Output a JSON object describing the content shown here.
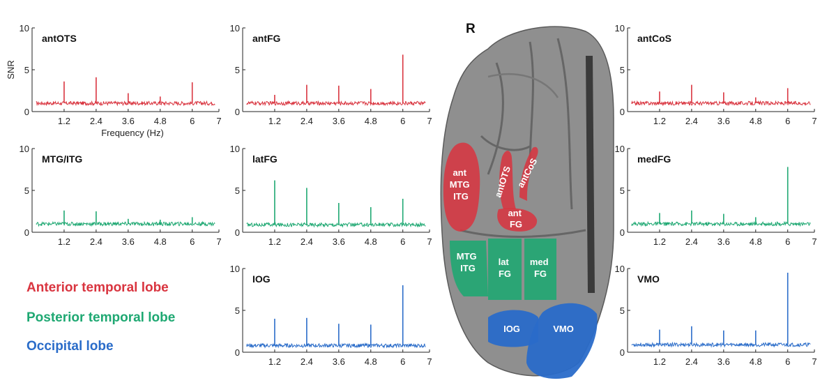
{
  "colors": {
    "anterior": "#d9343f",
    "posterior": "#1ea872",
    "occipital": "#2a6cc9",
    "axis": "#222222",
    "brain": "#8e8e8e"
  },
  "legend": {
    "anterior": "Anterior temporal lobe",
    "posterior": "Posterior temporal lobe",
    "occipital": "Occipital lobe"
  },
  "brain": {
    "hemisphere_label": "R",
    "regions": [
      {
        "label": "ant MTG ITG",
        "lobe": "anterior"
      },
      {
        "label": "antOTS",
        "lobe": "anterior"
      },
      {
        "label": "antCoS",
        "lobe": "anterior"
      },
      {
        "label": "ant FG",
        "lobe": "anterior"
      },
      {
        "label": "MTG ITG",
        "lobe": "posterior"
      },
      {
        "label": "lat FG",
        "lobe": "posterior"
      },
      {
        "label": "med FG",
        "lobe": "posterior"
      },
      {
        "label": "IOG",
        "lobe": "occipital"
      },
      {
        "label": "VMO",
        "lobe": "occipital"
      }
    ]
  },
  "chart_data": [
    {
      "type": "line",
      "title": "antOTS",
      "lobe": "anterior",
      "ylabel": "SNR",
      "xlabel": "Frequency (Hz)",
      "xlim": [
        0,
        7
      ],
      "ylim": [
        0,
        10
      ],
      "yticks": [
        0,
        5,
        10
      ],
      "xticks": [
        "1.2",
        "2.4",
        "3.6",
        "4.8",
        "6",
        "7"
      ],
      "baseline": 1.0,
      "peaks": [
        {
          "x": 1.2,
          "y": 3.6
        },
        {
          "x": 2.4,
          "y": 4.1
        },
        {
          "x": 3.6,
          "y": 2.2
        },
        {
          "x": 4.8,
          "y": 1.8
        },
        {
          "x": 6.0,
          "y": 3.5
        }
      ]
    },
    {
      "type": "line",
      "title": "antFG",
      "lobe": "anterior",
      "ylabel": "",
      "xlabel": "",
      "xlim": [
        0,
        7
      ],
      "ylim": [
        0,
        10
      ],
      "yticks": [
        0,
        5,
        10
      ],
      "xticks": [
        "1.2",
        "2.4",
        "3.6",
        "4.8",
        "6",
        "7"
      ],
      "baseline": 1.0,
      "peaks": [
        {
          "x": 1.2,
          "y": 2.0
        },
        {
          "x": 2.4,
          "y": 3.2
        },
        {
          "x": 3.6,
          "y": 3.1
        },
        {
          "x": 4.8,
          "y": 2.7
        },
        {
          "x": 6.0,
          "y": 6.8
        }
      ]
    },
    {
      "type": "line",
      "title": "antCoS",
      "lobe": "anterior",
      "ylabel": "",
      "xlabel": "",
      "xlim": [
        0,
        7
      ],
      "ylim": [
        0,
        10
      ],
      "yticks": [
        0,
        5,
        10
      ],
      "xticks": [
        "1.2",
        "2.4",
        "3.6",
        "4.8",
        "6",
        "7"
      ],
      "baseline": 1.0,
      "peaks": [
        {
          "x": 1.2,
          "y": 2.4
        },
        {
          "x": 2.4,
          "y": 3.2
        },
        {
          "x": 3.6,
          "y": 2.3
        },
        {
          "x": 4.8,
          "y": 1.7
        },
        {
          "x": 6.0,
          "y": 2.8
        }
      ]
    },
    {
      "type": "line",
      "title": "MTG/ITG",
      "lobe": "posterior",
      "ylabel": "",
      "xlabel": "",
      "xlim": [
        0,
        7
      ],
      "ylim": [
        0,
        10
      ],
      "yticks": [
        0,
        5,
        10
      ],
      "xticks": [
        "1.2",
        "2.4",
        "3.6",
        "4.8",
        "6",
        "7"
      ],
      "baseline": 1.0,
      "peaks": [
        {
          "x": 1.2,
          "y": 2.6
        },
        {
          "x": 2.4,
          "y": 2.5
        },
        {
          "x": 3.6,
          "y": 1.6
        },
        {
          "x": 4.8,
          "y": 1.5
        },
        {
          "x": 6.0,
          "y": 1.8
        }
      ]
    },
    {
      "type": "line",
      "title": "latFG",
      "lobe": "posterior",
      "ylabel": "",
      "xlabel": "",
      "xlim": [
        0,
        7
      ],
      "ylim": [
        0,
        10
      ],
      "yticks": [
        0,
        5,
        10
      ],
      "xticks": [
        "1.2",
        "2.4",
        "3.6",
        "4.8",
        "6",
        "7"
      ],
      "baseline": 0.9,
      "peaks": [
        {
          "x": 1.2,
          "y": 6.2
        },
        {
          "x": 2.4,
          "y": 5.3
        },
        {
          "x": 3.6,
          "y": 3.5
        },
        {
          "x": 4.8,
          "y": 3.0
        },
        {
          "x": 6.0,
          "y": 4.0
        }
      ]
    },
    {
      "type": "line",
      "title": "medFG",
      "lobe": "posterior",
      "ylabel": "",
      "xlabel": "",
      "xlim": [
        0,
        7
      ],
      "ylim": [
        0,
        10
      ],
      "yticks": [
        0,
        5,
        10
      ],
      "xticks": [
        "1.2",
        "2.4",
        "3.6",
        "4.8",
        "6",
        "7"
      ],
      "baseline": 1.0,
      "peaks": [
        {
          "x": 1.2,
          "y": 2.3
        },
        {
          "x": 2.4,
          "y": 2.6
        },
        {
          "x": 3.6,
          "y": 2.2
        },
        {
          "x": 4.8,
          "y": 1.8
        },
        {
          "x": 6.0,
          "y": 7.8
        }
      ]
    },
    {
      "type": "line",
      "title": "IOG",
      "lobe": "occipital",
      "ylabel": "",
      "xlabel": "",
      "xlim": [
        0,
        7
      ],
      "ylim": [
        0,
        10
      ],
      "yticks": [
        0,
        5,
        10
      ],
      "xticks": [
        "1.2",
        "2.4",
        "3.6",
        "4.8",
        "6",
        "7"
      ],
      "baseline": 0.8,
      "peaks": [
        {
          "x": 1.2,
          "y": 4.0
        },
        {
          "x": 2.4,
          "y": 4.1
        },
        {
          "x": 3.6,
          "y": 3.4
        },
        {
          "x": 4.8,
          "y": 3.3
        },
        {
          "x": 6.0,
          "y": 8.0
        }
      ]
    },
    {
      "type": "line",
      "title": "VMO",
      "lobe": "occipital",
      "ylabel": "",
      "xlabel": "",
      "xlim": [
        0,
        7
      ],
      "ylim": [
        0,
        10
      ],
      "yticks": [
        0,
        5,
        10
      ],
      "xticks": [
        "1.2",
        "2.4",
        "3.6",
        "4.8",
        "6",
        "7"
      ],
      "baseline": 0.9,
      "peaks": [
        {
          "x": 1.2,
          "y": 2.7
        },
        {
          "x": 2.4,
          "y": 3.1
        },
        {
          "x": 3.6,
          "y": 2.6
        },
        {
          "x": 4.8,
          "y": 2.6
        },
        {
          "x": 6.0,
          "y": 9.5
        }
      ]
    }
  ]
}
